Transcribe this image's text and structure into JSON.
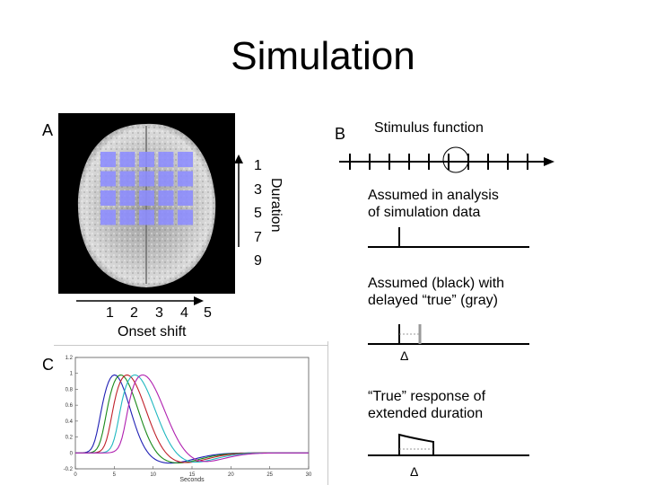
{
  "slide": {
    "title": "Simulation"
  },
  "panel_a": {
    "label": "A",
    "duration_label": "Duration",
    "duration_values": [
      "1",
      "3",
      "5",
      "7",
      "9"
    ],
    "onset_values": [
      "1",
      "2",
      "3",
      "4",
      "5"
    ],
    "onset_label": "Onset shift"
  },
  "panel_b": {
    "label": "B",
    "stimulus_title": "Stimulus function",
    "assumed_text_1": "Assumed in analysis",
    "assumed_text_2": "of simulation data",
    "delayed_text_1": "Assumed (black) with",
    "delayed_text_2": "delayed “true” (gray)",
    "delta_1": "Δ",
    "true_text_1": "“True” response of",
    "true_text_2": "extended duration",
    "delta_2": "Δ"
  },
  "panel_c": {
    "label": "C"
  },
  "chart_data": {
    "type": "line",
    "xlabel": "Seconds",
    "ylabel": "",
    "xlim": [
      0,
      30
    ],
    "ylim": [
      -0.2,
      1.2
    ],
    "x_ticks": [
      "0",
      "5",
      "10",
      "15",
      "20",
      "25",
      "30"
    ],
    "y_ticks": [
      "-0.2",
      "0",
      "0.2",
      "0.4",
      "0.6",
      "0.8",
      "1",
      "1.2"
    ],
    "grid": false,
    "series": [
      {
        "color": "#1f1fb4",
        "peak": 5.0,
        "width": 2.0
      },
      {
        "color": "#1a8a1a",
        "peak": 5.8,
        "width": 2.2
      },
      {
        "color": "#c0202a",
        "peak": 6.6,
        "width": 2.4
      },
      {
        "color": "#20b8c0",
        "peak": 7.6,
        "width": 2.6
      },
      {
        "color": "#b020b0",
        "peak": 8.6,
        "width": 2.8
      }
    ]
  }
}
